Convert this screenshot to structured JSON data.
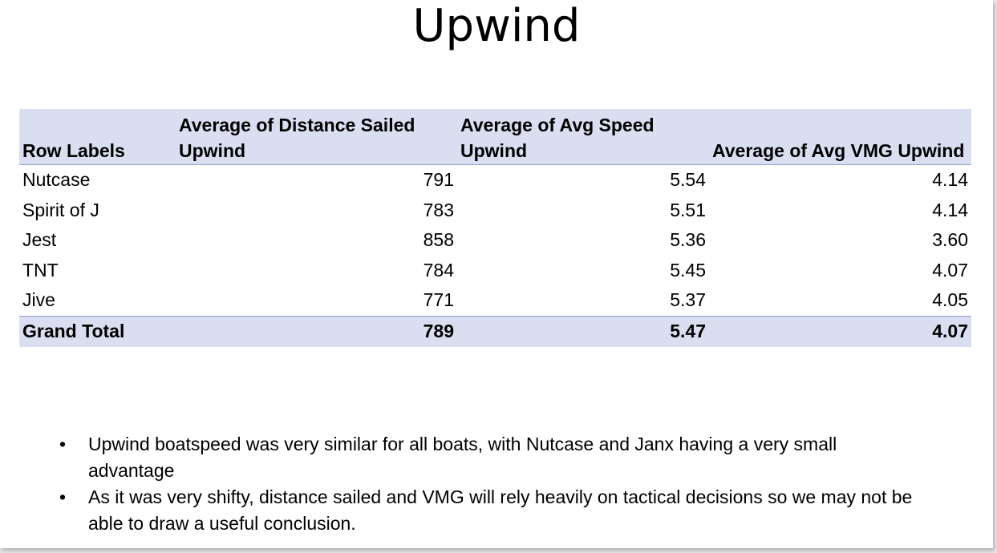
{
  "slide": {
    "title": "Upwind"
  },
  "table": {
    "headers": [
      "Row Labels",
      "Average of Distance Sailed Upwind",
      "Average of Avg Speed Upwind",
      "Average of Avg VMG Upwind"
    ],
    "rows": [
      {
        "label": "Nutcase",
        "distance": "791",
        "speed": "5.54",
        "vmg": "4.14"
      },
      {
        "label": "Spirit of J",
        "distance": "783",
        "speed": "5.51",
        "vmg": "4.14"
      },
      {
        "label": "Jest",
        "distance": "858",
        "speed": "5.36",
        "vmg": "3.60"
      },
      {
        "label": "TNT",
        "distance": "784",
        "speed": "5.45",
        "vmg": "4.07"
      },
      {
        "label": "Jive",
        "distance": "771",
        "speed": "5.37",
        "vmg": "4.05"
      }
    ],
    "total": {
      "label": "Grand Total",
      "distance": "789",
      "speed": "5.47",
      "vmg": "4.07"
    },
    "header_band_color": "#d9dff0",
    "rule_color": "#8ea0cf"
  },
  "notes": {
    "bullet_glyph": "•",
    "items": [
      "Upwind boatspeed was very similar for all boats, with Nutcase and Janx having a very small advantage",
      "As it was very shifty, distance sailed and VMG will rely heavily on tactical decisions so we may not be able to draw a useful conclusion."
    ]
  }
}
